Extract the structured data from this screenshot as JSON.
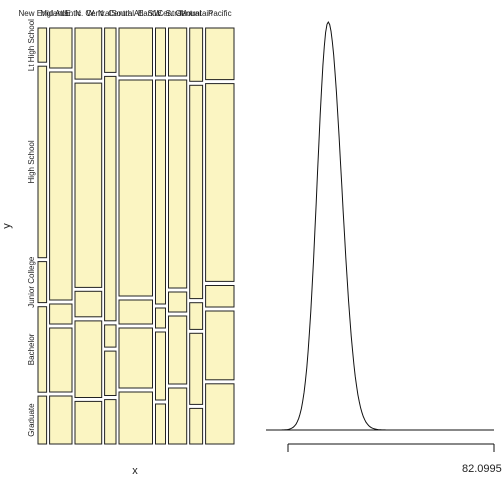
{
  "chart_data": [
    {
      "type": "mosaic",
      "xlabel": "x",
      "ylabel": "y",
      "x_categories": [
        "New England",
        "Mid Atlantic",
        "E. N. Central",
        "W. N. Central",
        "South Atlantic",
        "E. S. Central",
        "W. S. Central",
        "Mountain",
        "Pacific"
      ],
      "y_categories": [
        "Lt High School",
        "High School",
        "Junior College",
        "Bachelor",
        "Graduate"
      ],
      "x_proportions": [
        0.05,
        0.13,
        0.155,
        0.066,
        0.195,
        0.058,
        0.106,
        0.075,
        0.165
      ],
      "cell_proportions": [
        [
          0.1,
          0.56,
          0.12,
          0.25,
          0.14
        ],
        [
          0.1,
          0.57,
          0.05,
          0.16,
          0.12
        ],
        [
          0.12,
          0.48,
          0.06,
          0.18,
          0.1
        ],
        [
          0.1,
          0.55,
          0.05,
          0.1,
          0.1
        ],
        [
          0.12,
          0.54,
          0.06,
          0.15,
          0.13
        ],
        [
          0.12,
          0.56,
          0.05,
          0.17,
          0.1
        ],
        [
          0.12,
          0.52,
          0.05,
          0.17,
          0.14
        ],
        [
          0.12,
          0.48,
          0.06,
          0.16,
          0.08
        ],
        [
          0.12,
          0.46,
          0.05,
          0.16,
          0.14
        ]
      ],
      "fill": "#fbf5c2",
      "stroke": "#222222"
    },
    {
      "type": "line",
      "series": [
        {
          "x_range": [
            0,
            82.0995
          ],
          "peak_x": 16,
          "sd": 4.4
        }
      ],
      "axis_label": "82.0995"
    }
  ]
}
